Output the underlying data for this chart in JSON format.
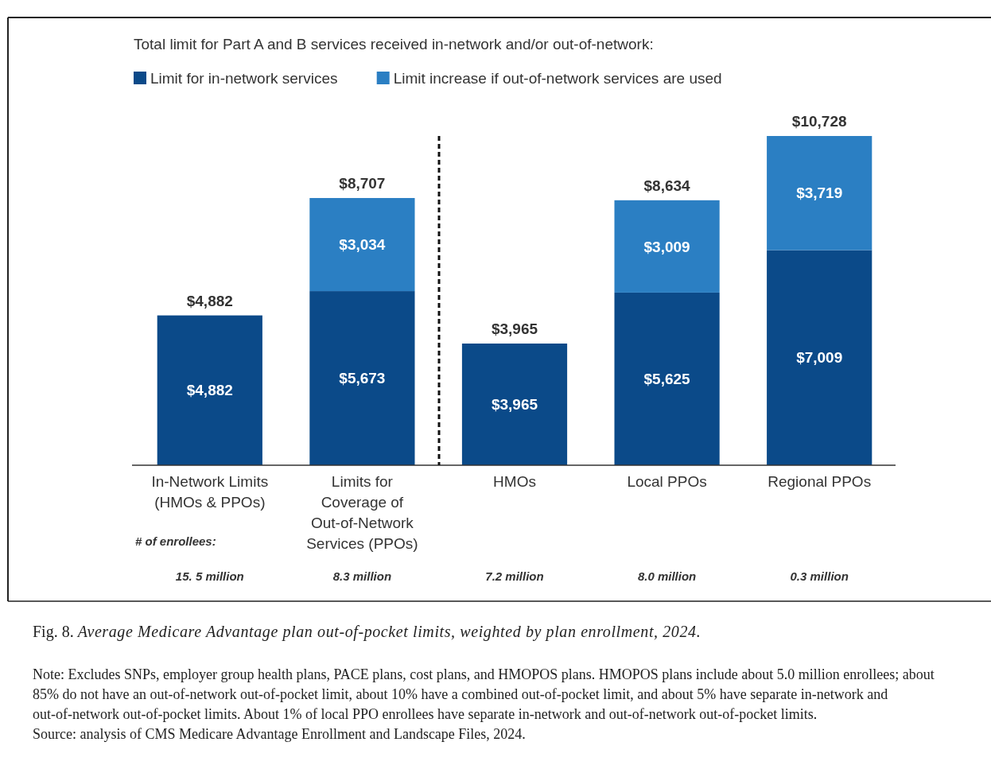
{
  "chart_data": {
    "type": "bar",
    "stacked": true,
    "title": "Fig. 8. Average Medicare Advantage plan out-of-pocket limits, weighted by plan enrollment, 2024.",
    "subtitle": "Total limit for Part A and B services received in-network and/or out-of-network:",
    "categories": [
      "In-Network Limits (HMOs & PPOs)",
      "Limits for Coverage of Out-of-Network Services (PPOs)",
      "HMOs",
      "Local PPOs",
      "Regional PPOs"
    ],
    "series": [
      {
        "name": "Limit for in-network services",
        "color": "#0b4a89",
        "values": [
          4882,
          5673,
          3965,
          5625,
          7009
        ],
        "value_labels": [
          "$4,882",
          "$5,673",
          "$3,965",
          "$5,625",
          "$7,009"
        ]
      },
      {
        "name": "Limit increase if out-of-network services are used",
        "color": "#2b7fc3",
        "values": [
          null,
          3034,
          null,
          3009,
          3719
        ],
        "value_labels": [
          null,
          "$3,034",
          null,
          "$3,009",
          "$3,719"
        ]
      }
    ],
    "totals": [
      "$4,882",
      "$8,707",
      "$3,965",
      "$8,634",
      "$10,728"
    ],
    "legend": "top left",
    "annotations": [
      "# of enrollees:",
      "15. 5 million",
      "8.3 million",
      "7.2 million",
      "8.0 million",
      "0.3 million",
      "Note: Excludes SNPs, employer group health plans, PACE plans, cost plans, and HMOPOS plans. HMOPOS plans include about 5.0 million enrollees; about 85% do not have an out-of-network out-of-pocket limit, about 10% have a combined out-of-pocket limit, and about 5% have separate in-network and out-of-network out-of-pocket limits. About 1% of local PPO enrollees have separate in-network and out-of-network out-of-pocket limits.",
      "Source: analysis of CMS Medicare Advantage Enrollment and Landscape Files, 2024."
    ]
  }
}
